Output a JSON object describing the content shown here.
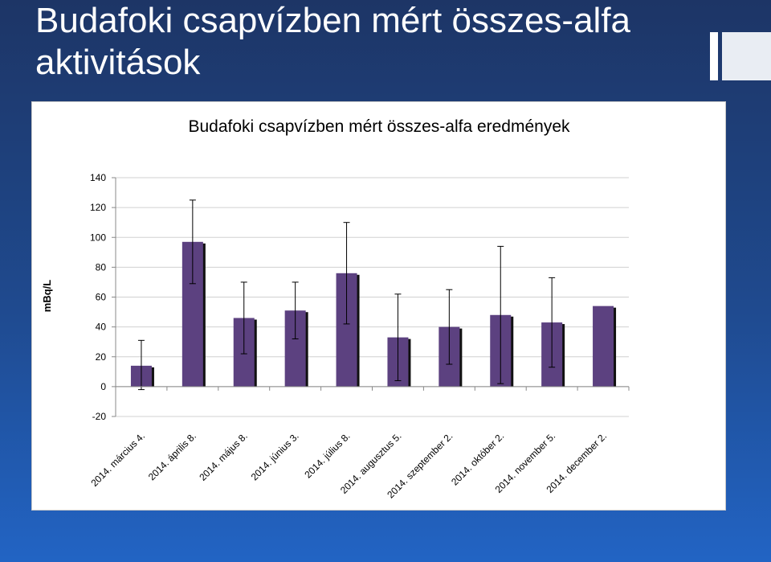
{
  "slide": {
    "title": "Budafoki csapvízben mért összes-alfa aktivitások"
  },
  "chart_data": {
    "type": "bar",
    "title": "Budafoki csapvízben mért összes-alfa eredmények",
    "xlabel": "",
    "ylabel": "mBq/L",
    "ylim": [
      -20,
      140
    ],
    "yticks": [
      -20,
      0,
      20,
      40,
      60,
      80,
      100,
      120,
      140
    ],
    "grid": true,
    "legend": "none",
    "categories": [
      "2014. március 4.",
      "2014. április 8.",
      "2014. május 8.",
      "2014. június 3.",
      "2014. július 8.",
      "2014. augusztus 5.",
      "2014. szeptember 2.",
      "2014. október 2.",
      "2014. november 5.",
      "2014. december 2."
    ],
    "values": [
      14,
      97,
      46,
      51,
      76,
      33,
      40,
      48,
      43,
      54
    ],
    "error_low": [
      -2,
      69,
      22,
      32,
      42,
      4,
      15,
      2,
      13,
      null
    ],
    "error_high": [
      31,
      125,
      70,
      70,
      110,
      62,
      65,
      94,
      73,
      null
    ],
    "bar_color": "#5c4180"
  }
}
